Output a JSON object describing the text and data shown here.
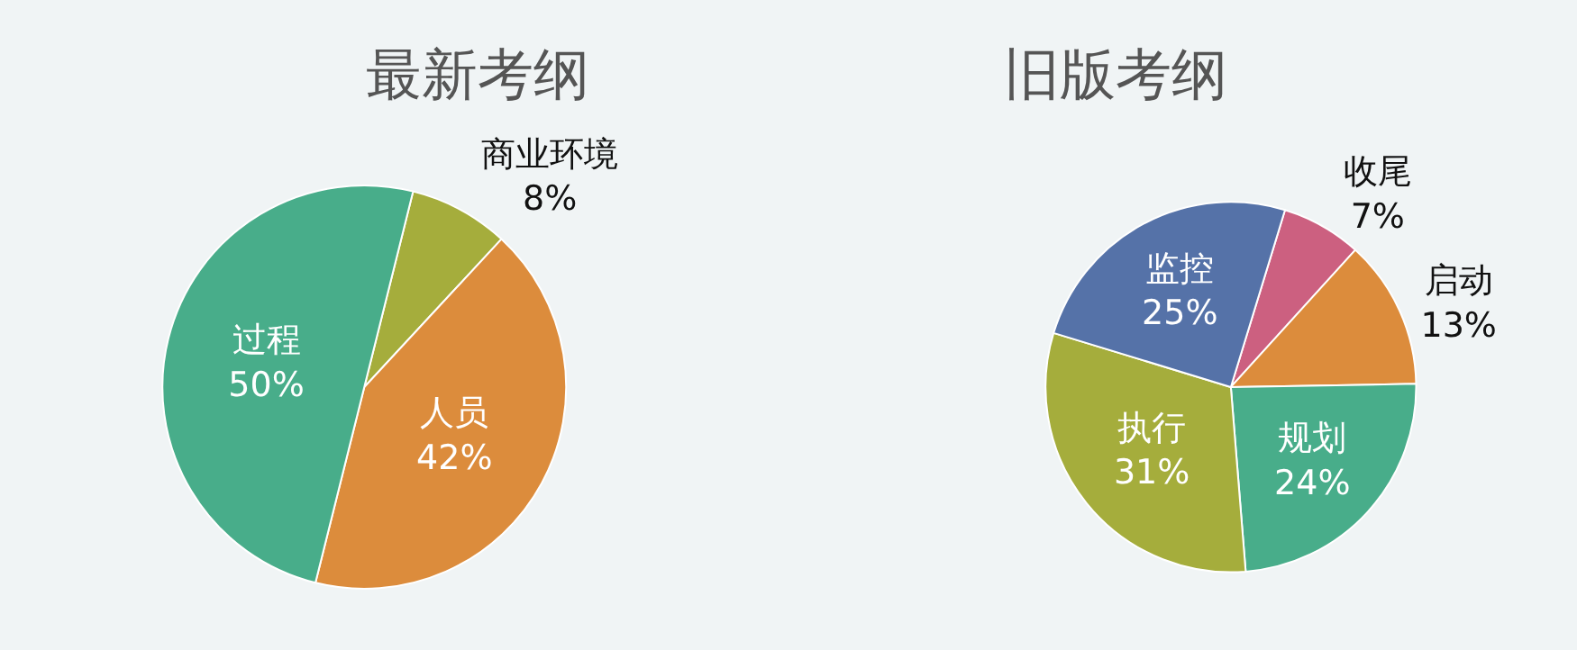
{
  "chart_data": [
    {
      "type": "pie",
      "title": "最新考纲",
      "categories": [
        "商业环境",
        "人员",
        "过程"
      ],
      "values": [
        8,
        42,
        50
      ],
      "value_labels": [
        "8%",
        "42%",
        "50%"
      ],
      "colors": [
        "#a5ad3c",
        "#dc8c3c",
        "#48ad8a"
      ]
    },
    {
      "type": "pie",
      "title": "旧版考纲",
      "categories": [
        "收尾",
        "启动",
        "规划",
        "执行",
        "监控"
      ],
      "values": [
        7,
        13,
        24,
        31,
        25
      ],
      "value_labels": [
        "7%",
        "13%",
        "24%",
        "31%",
        "25%"
      ],
      "colors": [
        "#cc6080",
        "#dc8c3c",
        "#48ad8a",
        "#a5ad3c",
        "#5572a8"
      ]
    }
  ]
}
